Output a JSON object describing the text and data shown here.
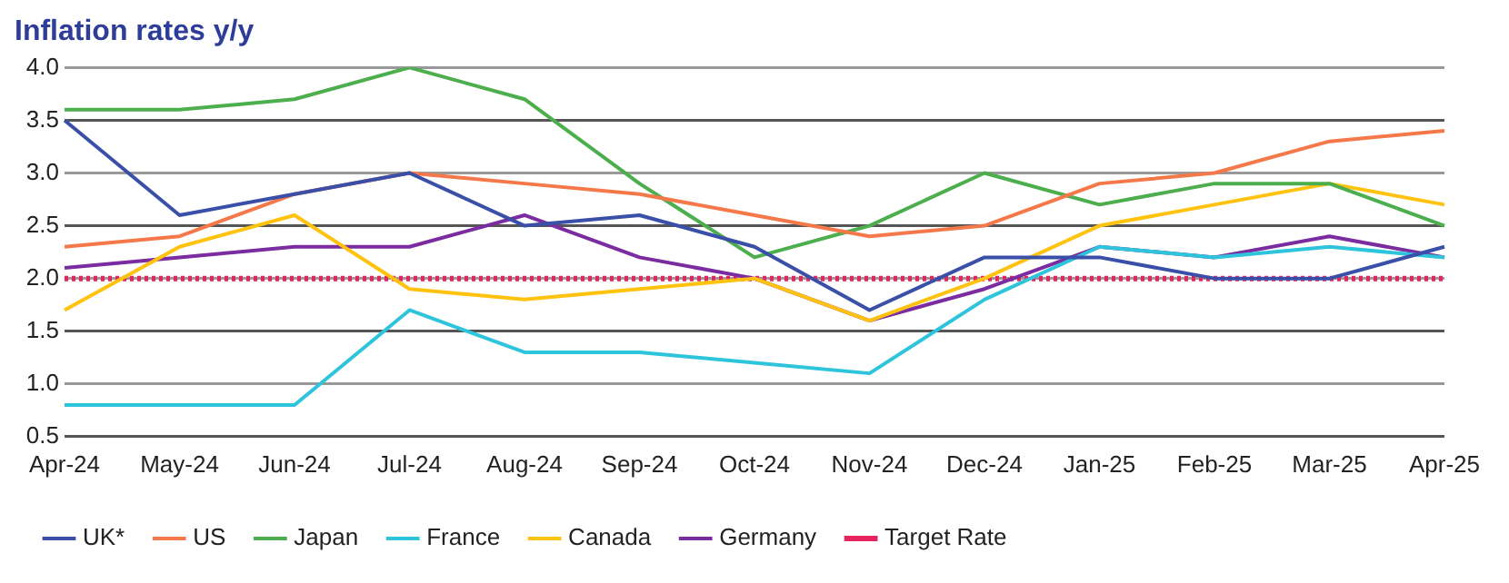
{
  "chart_data": {
    "type": "line",
    "title": "Inflation rates y/y",
    "categories": [
      "Apr-24",
      "May-24",
      "Jun-24",
      "Jul-24",
      "Aug-24",
      "Sep-24",
      "Oct-24",
      "Nov-24",
      "Dec-24",
      "Jan-25",
      "Feb-25",
      "Mar-25",
      "Apr-25"
    ],
    "series": [
      {
        "name": "UK*",
        "color": "#3a4fa8",
        "values": [
          3.5,
          2.6,
          2.8,
          3.0,
          2.5,
          2.6,
          2.3,
          1.7,
          2.2,
          2.2,
          2.0,
          2.0,
          2.3
        ]
      },
      {
        "name": "US",
        "color": "#f5784a",
        "values": [
          2.3,
          2.4,
          2.8,
          3.0,
          2.9,
          2.8,
          2.6,
          2.4,
          2.5,
          2.9,
          3.0,
          3.3,
          3.4
        ]
      },
      {
        "name": "Japan",
        "color": "#4cae4c",
        "values": [
          3.6,
          3.6,
          3.7,
          4.0,
          3.7,
          2.9,
          2.2,
          2.5,
          3.0,
          2.7,
          2.9,
          2.9,
          2.5
        ]
      },
      {
        "name": "France",
        "color": "#2ec4dc",
        "values": [
          0.8,
          0.8,
          0.8,
          1.7,
          1.3,
          1.3,
          1.2,
          1.1,
          1.8,
          2.3,
          2.2,
          2.3,
          2.2
        ]
      },
      {
        "name": "Canada",
        "color": "#ffc20e",
        "values": [
          1.7,
          2.3,
          2.6,
          1.9,
          1.8,
          1.9,
          2.0,
          1.6,
          2.0,
          2.5,
          2.7,
          2.9,
          2.7
        ]
      },
      {
        "name": "Germany",
        "color": "#7b2ca0",
        "values": [
          2.1,
          2.2,
          2.3,
          2.3,
          2.6,
          2.2,
          2.0,
          1.6,
          1.9,
          2.3,
          2.2,
          2.4,
          2.2
        ]
      },
      {
        "name": "Target Rate",
        "color": "#e8245f",
        "line_style": "dotted",
        "values": [
          2.0,
          2.0,
          2.0,
          2.0,
          2.0,
          2.0,
          2.0,
          2.0,
          2.0,
          2.0,
          2.0,
          2.0,
          2.0
        ]
      }
    ],
    "ylim": [
      0.5,
      4.0
    ],
    "yticks": [
      {
        "value": 0.5,
        "label": "0.5"
      },
      {
        "value": 1,
        "label": "1.0"
      },
      {
        "value": 1.5,
        "label": "1.5"
      },
      {
        "value": 2,
        "label": "2.0"
      },
      {
        "value": 2.5,
        "label": "2.5"
      },
      {
        "value": 3,
        "label": "3.0"
      },
      {
        "value": 3.5,
        "label": "3.5"
      },
      {
        "value": 4,
        "label": "4.0"
      }
    ],
    "grid": "y",
    "legend": "bottom",
    "marker": "none",
    "line_style": "solid"
  }
}
